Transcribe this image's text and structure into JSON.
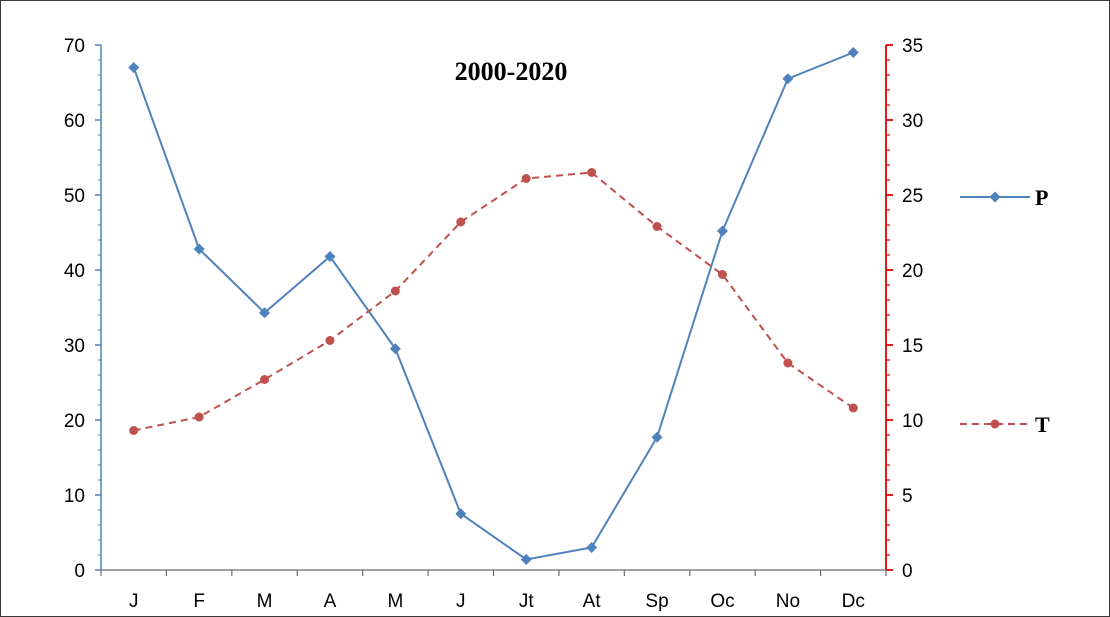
{
  "chart_data": {
    "type": "line",
    "title": "2000-2020",
    "categories": [
      "J",
      "F",
      "M",
      "A",
      "M",
      "J",
      "Jt",
      "At",
      "Sp",
      "Oc",
      "No",
      "Dc"
    ],
    "y_left": {
      "range": [
        0,
        70
      ],
      "ticks": [
        "0",
        "10",
        "20",
        "30",
        "40",
        "50",
        "60",
        "70"
      ]
    },
    "y_right": {
      "range": [
        0,
        35
      ],
      "ticks": [
        "0",
        "5",
        "10",
        "15",
        "20",
        "25",
        "30",
        "35"
      ]
    },
    "series": [
      {
        "name": "P",
        "axis": "left",
        "style": "solid",
        "marker": "diamond",
        "color": "#4F81BD",
        "values": [
          67,
          42.8,
          34.3,
          41.8,
          29.5,
          7.5,
          1.4,
          3.0,
          17.7,
          45.2,
          65.5,
          69
        ]
      },
      {
        "name": "T",
        "axis": "right",
        "style": "dashed",
        "marker": "circle",
        "color": "#C0504D",
        "values": [
          9.3,
          10.2,
          12.7,
          15.3,
          18.6,
          23.2,
          26.1,
          26.5,
          22.9,
          19.7,
          13.8,
          10.8
        ]
      }
    ],
    "axis_colors": {
      "left": "#4F81BD",
      "right": "#E00000",
      "bottom": "#6b6b6b"
    },
    "grid": false,
    "legend_position": "right"
  }
}
